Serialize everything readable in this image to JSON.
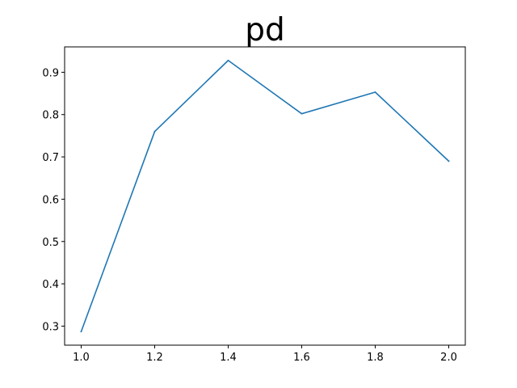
{
  "chart_data": {
    "type": "line",
    "title": "pd",
    "xlabel": "",
    "ylabel": "",
    "x": [
      1.0,
      1.2,
      1.4,
      1.6,
      1.8,
      2.0
    ],
    "series": [
      {
        "color": "#1f77b4",
        "values": [
          0.287,
          0.76,
          0.928,
          0.802,
          0.853,
          0.69
        ]
      }
    ],
    "xlim": [
      0.955,
      2.045
    ],
    "ylim": [
      0.255,
      0.96
    ],
    "xticks": [
      1.0,
      1.2,
      1.4,
      1.6,
      1.8,
      2.0
    ],
    "xtick_labels": [
      "1.0",
      "1.2",
      "1.4",
      "1.6",
      "1.8",
      "2.0"
    ],
    "yticks": [
      0.3,
      0.4,
      0.5,
      0.6,
      0.7,
      0.8,
      0.9
    ],
    "ytick_labels": [
      "0.3",
      "0.4",
      "0.5",
      "0.6",
      "0.7",
      "0.8",
      "0.9"
    ],
    "grid": false,
    "legend": "none"
  }
}
